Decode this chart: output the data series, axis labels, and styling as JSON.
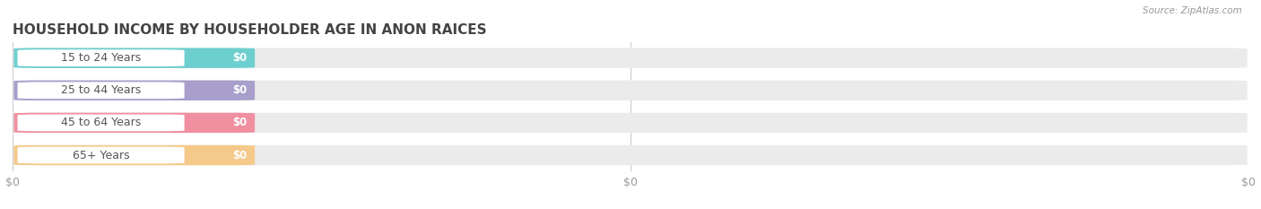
{
  "title": "HOUSEHOLD INCOME BY HOUSEHOLDER AGE IN ANON RAICES",
  "source_text": "Source: ZipAtlas.com",
  "categories": [
    "15 to 24 Years",
    "25 to 44 Years",
    "45 to 64 Years",
    "65+ Years"
  ],
  "values": [
    0,
    0,
    0,
    0
  ],
  "bar_colors": [
    "#6ecfcf",
    "#a89fcc",
    "#f08fa0",
    "#f5c98a"
  ],
  "bar_bg_color": "#ebebeb",
  "fig_bg_color": "#ffffff",
  "title_color": "#444444",
  "tick_label_color": "#999999",
  "source_color": "#999999",
  "title_fontsize": 11,
  "tick_fontsize": 9,
  "label_fontsize": 9,
  "value_fontsize": 8.5
}
